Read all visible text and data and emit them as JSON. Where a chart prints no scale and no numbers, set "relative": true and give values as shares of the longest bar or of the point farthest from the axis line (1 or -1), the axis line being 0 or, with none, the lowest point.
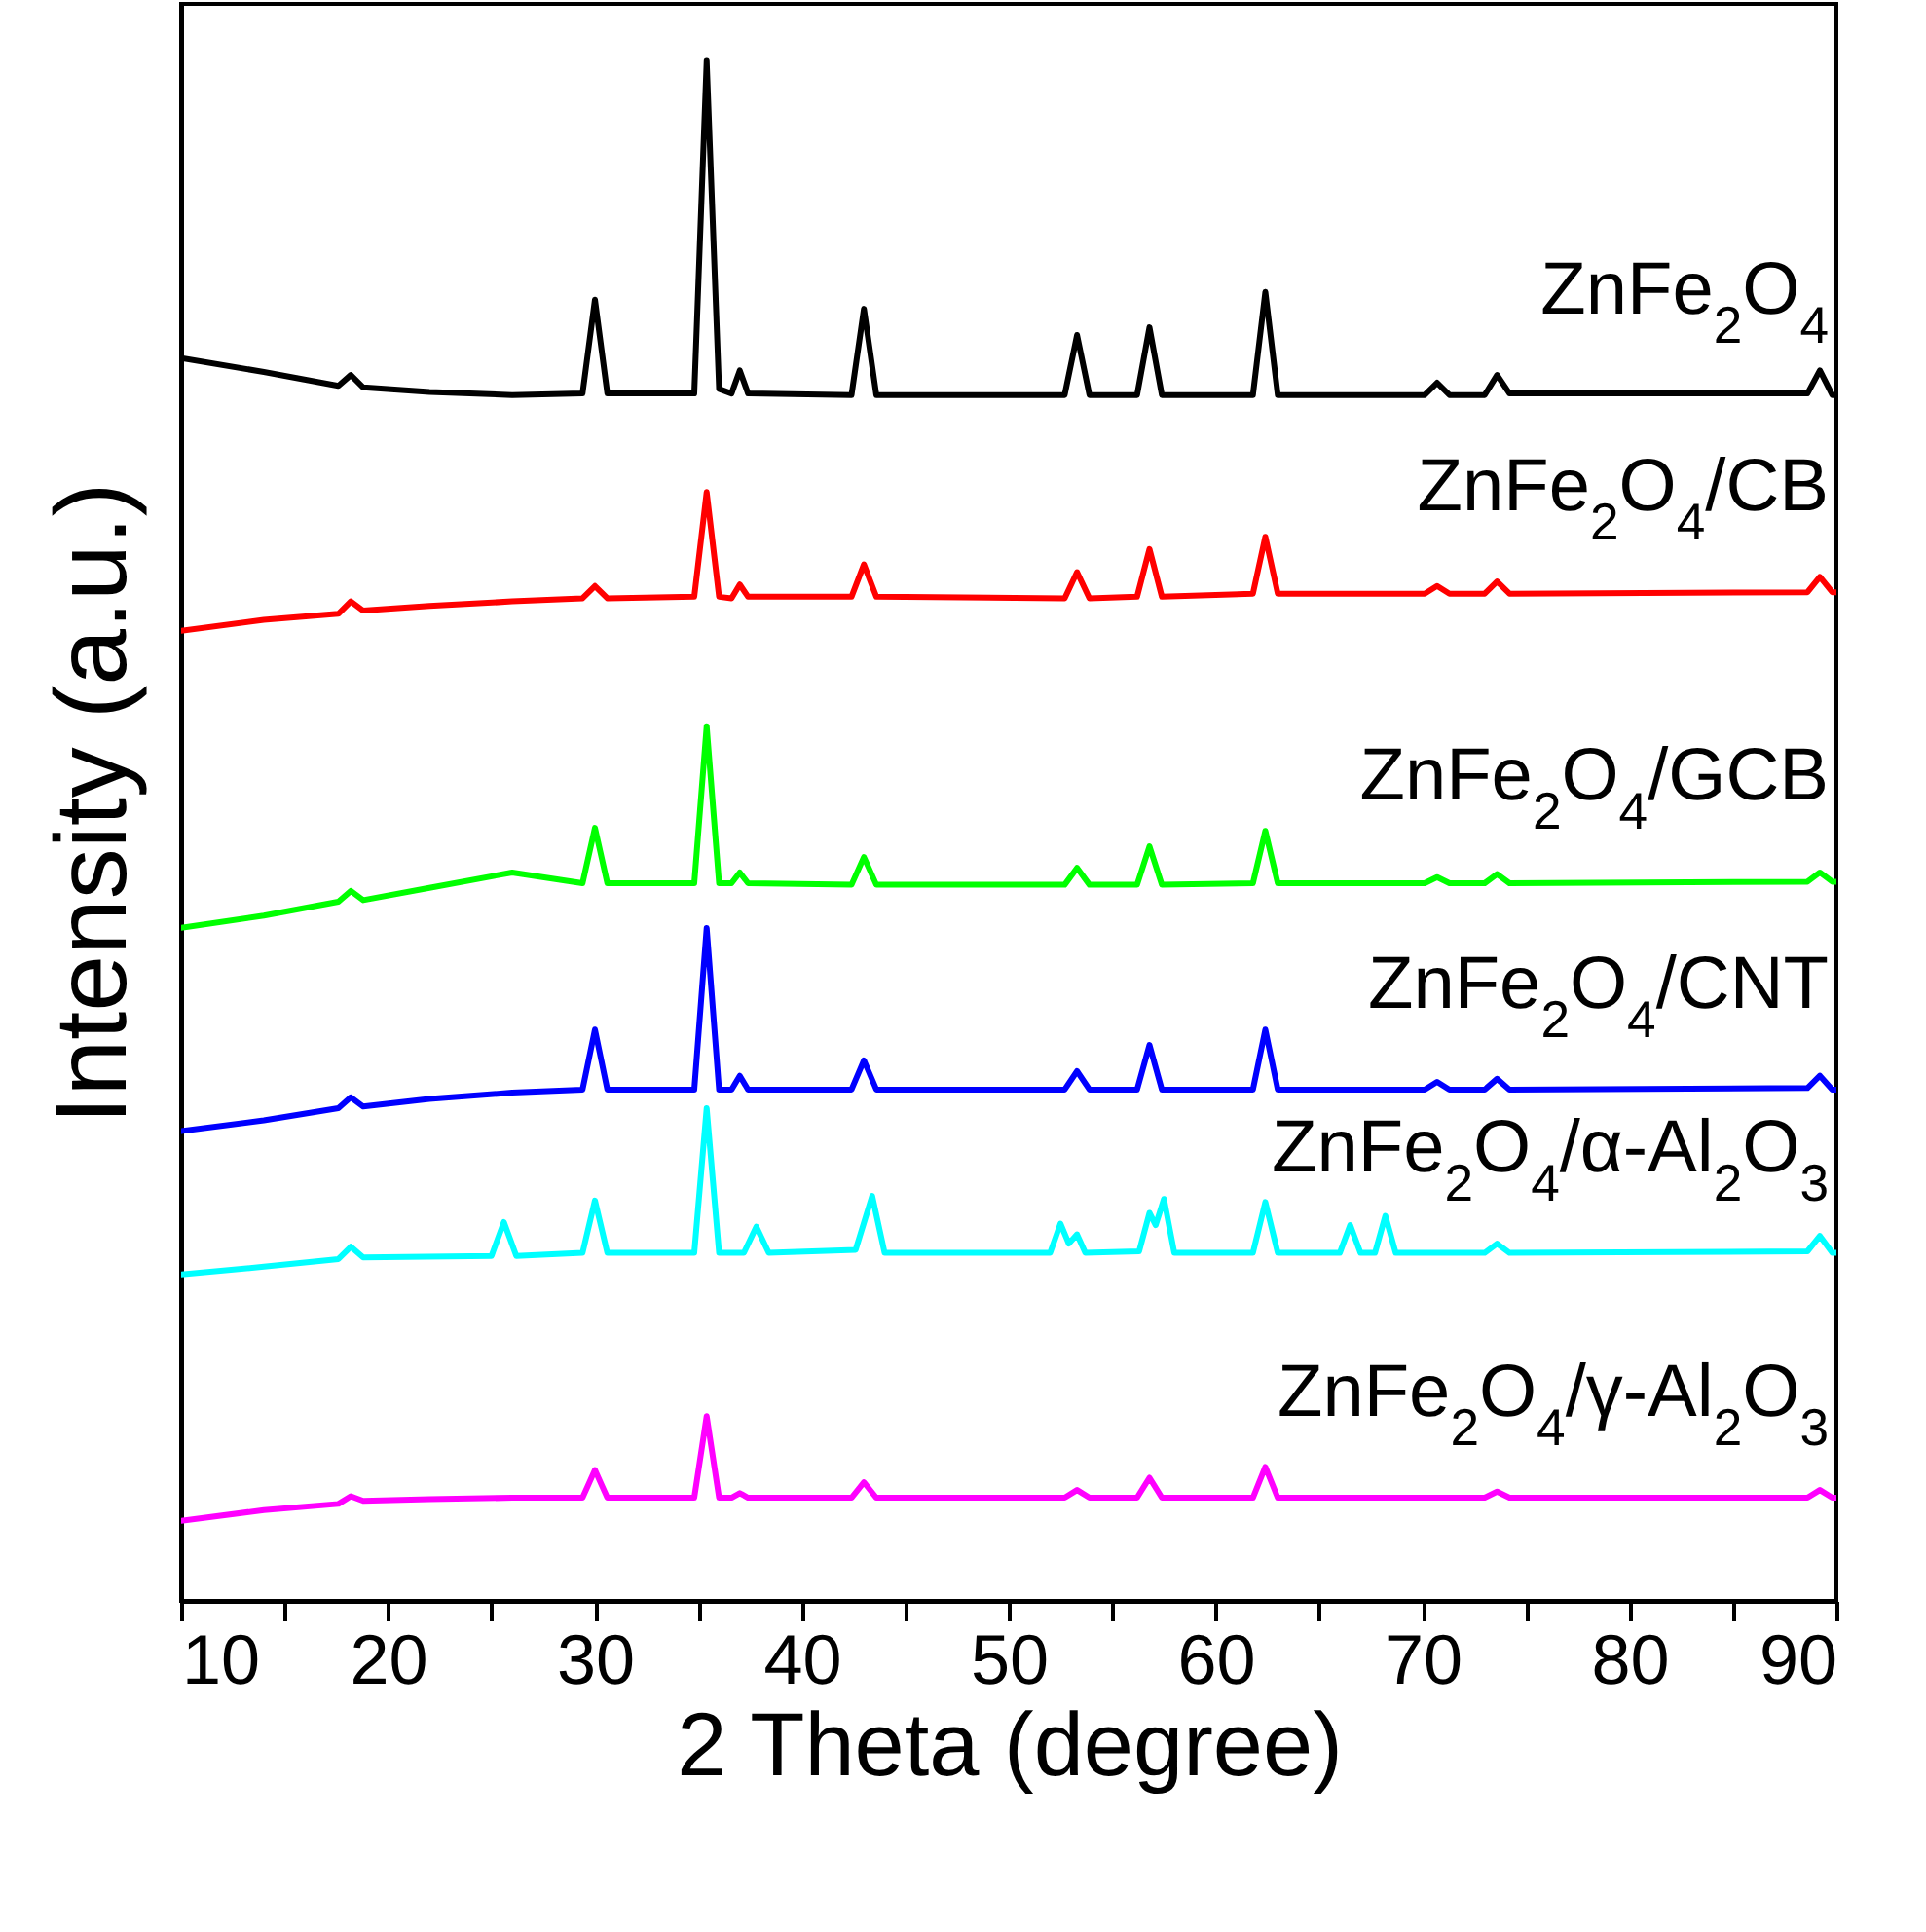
{
  "chart_data": {
    "type": "line",
    "relative": true,
    "xlabel": "2 Theta (degree)",
    "ylabel": "Intensity (a.u.)",
    "xlim": [
      10,
      90
    ],
    "xticks": [
      10,
      {
        "value": 15,
        "label": null
      },
      20,
      {
        "value": 25,
        "label": null
      },
      30,
      {
        "value": 35,
        "label": null
      },
      40,
      {
        "value": 45,
        "label": null
      },
      50,
      {
        "value": 55,
        "label": null
      },
      60,
      {
        "value": 65,
        "label": null
      },
      70,
      {
        "value": 75,
        "label": null
      },
      80,
      {
        "value": 85,
        "label": null
      },
      90
    ],
    "tick_labels": "x",
    "x": [
      10,
      14,
      17.6,
      18.2,
      18.8,
      22,
      26,
      29.4,
      30.0,
      30.6,
      34.8,
      35.4,
      36.0,
      36.6,
      37.0,
      37.4,
      42.4,
      43.0,
      43.6,
      52.7,
      53.3,
      53.9,
      56.2,
      56.8,
      57.4,
      61.8,
      62.4,
      63.0,
      70.1,
      70.7,
      71.3,
      73.0,
      73.6,
      74.2,
      88.6,
      89.2,
      89.8,
      90
    ],
    "series": [
      {
        "name": "ZnFe$_{2}$O$_{4}$",
        "color": "#000000",
        "values": [
          0.807,
          0.798,
          0.789,
          0.796,
          0.788,
          0.785,
          0.783,
          0.784,
          0.845,
          0.784,
          0.784,
          1.0,
          0.787,
          0.784,
          0.799,
          0.784,
          0.783,
          0.839,
          0.783,
          0.783,
          0.822,
          0.783,
          0.783,
          0.827,
          0.783,
          0.783,
          0.85,
          0.783,
          0.783,
          0.791,
          0.783,
          0.783,
          0.796,
          0.784,
          0.784,
          0.799,
          0.783,
          0.783
        ]
      },
      {
        "name": "ZnFe$_{2}$O$_{4}$/CB",
        "color": "#ff0000",
        "values": [
          0.63,
          0.637,
          0.641,
          0.649,
          0.643,
          0.646,
          0.649,
          0.651,
          0.659,
          0.651,
          0.652,
          0.72,
          0.652,
          0.651,
          0.66,
          0.652,
          0.652,
          0.673,
          0.652,
          0.651,
          0.668,
          0.651,
          0.652,
          0.683,
          0.652,
          0.654,
          0.691,
          0.654,
          0.654,
          0.659,
          0.654,
          0.654,
          0.662,
          0.654,
          0.655,
          0.665,
          0.655,
          0.655
        ]
      },
      {
        "name": "ZnFe$_{2}$O$_{4}$/GCB",
        "color": "#00ff00",
        "values": [
          0.437,
          0.445,
          0.454,
          0.461,
          0.455,
          0.463,
          0.473,
          0.466,
          0.502,
          0.466,
          0.466,
          0.568,
          0.466,
          0.466,
          0.473,
          0.466,
          0.465,
          0.483,
          0.465,
          0.465,
          0.476,
          0.465,
          0.465,
          0.49,
          0.465,
          0.466,
          0.5,
          0.466,
          0.466,
          0.47,
          0.466,
          0.466,
          0.472,
          0.466,
          0.467,
          0.473,
          0.467,
          0.467
        ]
      },
      {
        "name": "ZnFe$_{2}$O$_{4}$/CNT",
        "color": "#0000ff",
        "values": [
          0.305,
          0.312,
          0.32,
          0.327,
          0.321,
          0.326,
          0.33,
          0.332,
          0.371,
          0.332,
          0.332,
          0.437,
          0.332,
          0.332,
          0.341,
          0.332,
          0.332,
          0.351,
          0.332,
          0.332,
          0.344,
          0.332,
          0.332,
          0.361,
          0.332,
          0.332,
          0.371,
          0.332,
          0.332,
          0.337,
          0.332,
          0.332,
          0.339,
          0.332,
          0.333,
          0.341,
          0.332,
          0.332
        ]
      },
      {
        "name": "ZnFe$_{2}$O$_{4}$/α-Al$_{2}$O$_{3}$",
        "color": "#00ffff",
        "x": [
          10,
          14,
          17.6,
          18.2,
          18.8,
          25.0,
          25.6,
          26.2,
          29.4,
          30.0,
          30.6,
          34.8,
          35.4,
          36.0,
          37.2,
          37.8,
          38.4,
          42.6,
          43.4,
          44.0,
          52.0,
          52.5,
          52.9,
          53.3,
          53.7,
          56.3,
          56.8,
          57.1,
          57.5,
          58.0,
          61.8,
          62.4,
          63.0,
          66.0,
          66.5,
          67.0,
          67.7,
          68.2,
          68.7,
          73.0,
          73.6,
          74.2,
          88.6,
          89.2,
          89.8,
          90
        ],
        "values": [
          0.212,
          0.217,
          0.222,
          0.23,
          0.223,
          0.224,
          0.246,
          0.224,
          0.226,
          0.26,
          0.226,
          0.226,
          0.32,
          0.226,
          0.226,
          0.243,
          0.226,
          0.228,
          0.263,
          0.226,
          0.226,
          0.245,
          0.232,
          0.238,
          0.226,
          0.227,
          0.252,
          0.244,
          0.261,
          0.226,
          0.226,
          0.259,
          0.226,
          0.226,
          0.244,
          0.226,
          0.226,
          0.25,
          0.226,
          0.226,
          0.232,
          0.226,
          0.227,
          0.237,
          0.226,
          0.226
        ]
      },
      {
        "name": "ZnFe$_{2}$O$_{4}$/γ-Al$_{2}$O$_{3}$",
        "color": "#ff00ff",
        "values": [
          0.052,
          0.059,
          0.063,
          0.068,
          0.065,
          0.066,
          0.067,
          0.067,
          0.085,
          0.067,
          0.067,
          0.12,
          0.067,
          0.067,
          0.07,
          0.067,
          0.067,
          0.077,
          0.067,
          0.067,
          0.072,
          0.067,
          0.067,
          0.08,
          0.067,
          0.067,
          0.087,
          0.067,
          0.067,
          0.067,
          0.067,
          0.067,
          0.071,
          0.067,
          0.067,
          0.072,
          0.067,
          0.067
        ]
      }
    ]
  }
}
